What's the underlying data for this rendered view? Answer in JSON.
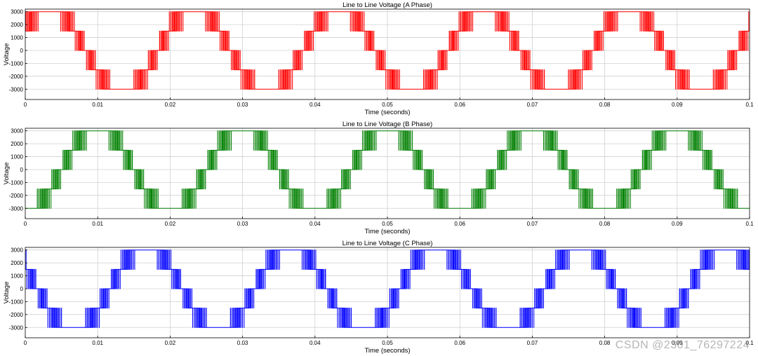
{
  "chart_data": [
    {
      "type": "line",
      "title": "Line to Line Voltage (A Phase)",
      "xlabel": "Time (seconds)",
      "ylabel": "Voltage",
      "xlim": [
        0,
        0.1
      ],
      "ylim": [
        -3800,
        3200
      ],
      "xticks": [
        0,
        0.01,
        0.02,
        0.03,
        0.04,
        0.05,
        0.06,
        0.07,
        0.08,
        0.09,
        0.1
      ],
      "xtick_labels": [
        "0",
        "0.01",
        "0.02",
        "0.03",
        "0.04",
        "0.05",
        "0.06",
        "0.07",
        "0.08",
        "0.09",
        "0.1"
      ],
      "yticks": [
        -3000,
        -2000,
        -1000,
        0,
        1000,
        2000,
        3000
      ],
      "ytick_labels": [
        "-3000",
        "-2000",
        "-1000",
        "0",
        "1000",
        "2000",
        "3000"
      ],
      "grid": true,
      "color": "#ff0000",
      "fundamental_hz": 50,
      "phase_deg": 30,
      "pwm_pulses_per_cycle": 90,
      "levels": [
        -3000,
        -1500,
        0,
        1500,
        3000
      ],
      "series": [
        {
          "name": "A Phase",
          "color": "#ff0000"
        }
      ]
    },
    {
      "type": "line",
      "title": "Line to Line Voltage (B Phase)",
      "xlabel": "Time (seconds)",
      "ylabel": "Voltage",
      "xlim": [
        0,
        0.1
      ],
      "ylim": [
        -3800,
        3200
      ],
      "xticks": [
        0,
        0.01,
        0.02,
        0.03,
        0.04,
        0.05,
        0.06,
        0.07,
        0.08,
        0.09,
        0.1
      ],
      "xtick_labels": [
        "0",
        "0.01",
        "0.02",
        "0.03",
        "0.04",
        "0.05",
        "0.06",
        "0.07",
        "0.08",
        "0.09",
        "0.1"
      ],
      "yticks": [
        -3000,
        -2000,
        -1000,
        0,
        1000,
        2000,
        3000
      ],
      "ytick_labels": [
        "-3000",
        "-2000",
        "-1000",
        "0",
        "1000",
        "2000",
        "3000"
      ],
      "grid": true,
      "color": "#008000",
      "fundamental_hz": 50,
      "phase_deg": -90,
      "pwm_pulses_per_cycle": 90,
      "levels": [
        -3000,
        -1500,
        0,
        1500,
        3000
      ],
      "series": [
        {
          "name": "B Phase",
          "color": "#008000"
        }
      ]
    },
    {
      "type": "line",
      "title": "Line to Line Voltage (C Phase)",
      "xlabel": "Time (seconds)",
      "ylabel": "Voltage",
      "xlim": [
        0,
        0.1
      ],
      "ylim": [
        -3800,
        3200
      ],
      "xticks": [
        0,
        0.01,
        0.02,
        0.03,
        0.04,
        0.05,
        0.06,
        0.07,
        0.08,
        0.09,
        0.1
      ],
      "xtick_labels": [
        "0",
        "0.01",
        "0.02",
        "0.03",
        "0.04",
        "0.05",
        "0.06",
        "0.07",
        "0.08",
        "0.09",
        "0.1"
      ],
      "yticks": [
        -3000,
        -2000,
        -1000,
        0,
        1000,
        2000,
        3000
      ],
      "ytick_labels": [
        "-3000",
        "-2000",
        "-1000",
        "0",
        "1000",
        "2000",
        "3000"
      ],
      "grid": true,
      "color": "#0000ff",
      "fundamental_hz": 50,
      "phase_deg": 150,
      "pwm_pulses_per_cycle": 90,
      "levels": [
        -3000,
        -1500,
        0,
        1500,
        3000
      ],
      "series": [
        {
          "name": "C Phase",
          "color": "#0000ff"
        }
      ]
    }
  ],
  "watermark": "CSDN @2301_76297224"
}
